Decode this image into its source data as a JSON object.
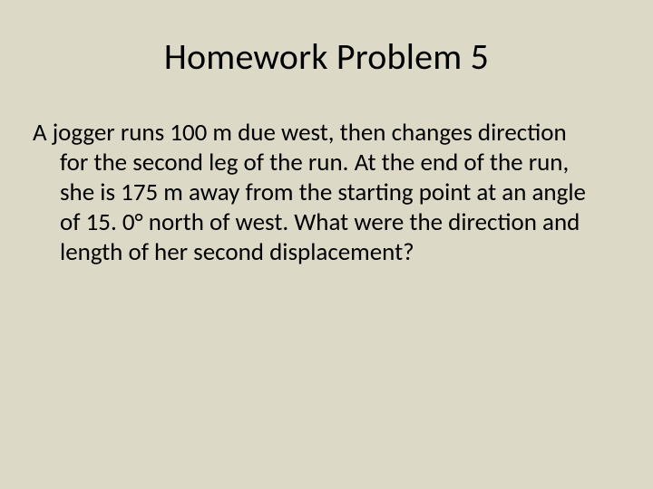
{
  "slide": {
    "title": "Homework Problem 5",
    "body": "A jogger runs 100 m due west, then changes direction for the second leg of the run.  At the end of the run, she is 175 m away from the starting point at an angle of 15. 0° north of west.  What were the direction and length of her second displacement?"
  },
  "style": {
    "background_color": "#dcd9c7",
    "text_color": "#000000",
    "title_fontsize": 40,
    "body_fontsize": 27,
    "font_family": "Calibri"
  }
}
